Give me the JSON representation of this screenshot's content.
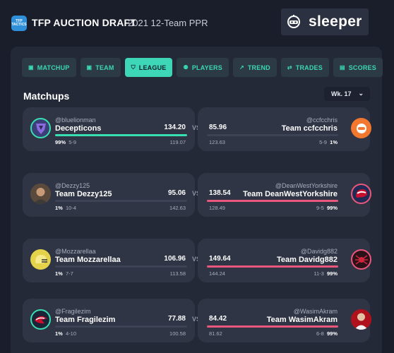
{
  "header": {
    "logo_text": "TFP TACTICS",
    "title": "TFP AUCTION DRAFT",
    "subtitle": "2021 12-Team PPR",
    "brand": "sleeper"
  },
  "tabs": [
    {
      "label": "MATCHUP",
      "icon": "trophy-icon"
    },
    {
      "label": "TEAM",
      "icon": "roster-icon"
    },
    {
      "label": "LEAGUE",
      "icon": "shield-icon"
    },
    {
      "label": "PLAYERS",
      "icon": "players-icon"
    },
    {
      "label": "TREND",
      "icon": "trend-icon"
    },
    {
      "label": "TRADES",
      "icon": "trades-icon"
    },
    {
      "label": "SCORES",
      "icon": "scores-icon"
    }
  ],
  "active_tab": "LEAGUE",
  "section_title": "Matchups",
  "week": "Wk. 17",
  "vs_label": "VS",
  "colors": {
    "accent": "#3dd7b8",
    "win_bar": "#38dfb0",
    "lose_bar": "#e9577c",
    "background": "#1a1e2b",
    "panel": "#242938",
    "card": "#2f3545"
  },
  "matchups": [
    {
      "left": {
        "username": "@bluelionman",
        "team": "Decepticons",
        "score": "134.20",
        "win_prob": "99%",
        "record": "5-9",
        "projected": "119.07",
        "progress": 1.0,
        "avatar_icon": "decepticon-logo-icon"
      },
      "right": {
        "username": "@ccfcchris",
        "team": "Team ccfcchris",
        "score": "85.96",
        "win_prob": "1%",
        "record": "5-9",
        "projected": "123.63",
        "progress": 0.0,
        "avatar_icon": "sleeper-avatar-icon"
      }
    },
    {
      "left": {
        "username": "@Dezzy125",
        "team": "Team Dezzy125",
        "score": "95.06",
        "win_prob": "1%",
        "record": "10-4",
        "projected": "142.63",
        "progress": 0.0,
        "avatar_icon": "person-photo-icon"
      },
      "right": {
        "username": "@DeanWestYorkshire",
        "team": "Team DeanWestYorkshire",
        "score": "138.54",
        "win_prob": "99%",
        "record": "9-5",
        "projected": "128.49",
        "progress": 1.0,
        "avatar_icon": "patriots-helmet-icon"
      }
    },
    {
      "left": {
        "username": "@Mozzarellaa",
        "team": "Team Mozzarellaa",
        "score": "106.96",
        "win_prob": "1%",
        "record": "7-7",
        "projected": "113.58",
        "progress": 0.0,
        "avatar_icon": "helmet-icon"
      },
      "right": {
        "username": "@Davidg882",
        "team": "Team Davidg882",
        "score": "149.64",
        "win_prob": "99%",
        "record": "11-3",
        "projected": "144.24",
        "progress": 1.0,
        "avatar_icon": "spider-logo-icon"
      }
    },
    {
      "left": {
        "username": "@Fragilezim",
        "team": "Team Fragilezim",
        "score": "77.88",
        "win_prob": "1%",
        "record": "4-10",
        "projected": "100.58",
        "progress": 0.0,
        "avatar_icon": "patriots-logo-icon"
      },
      "right": {
        "username": "@WasimAkram",
        "team": "Team WasimAkram",
        "score": "84.42",
        "win_prob": "99%",
        "record": "6-8",
        "projected": "81.62",
        "progress": 1.0,
        "avatar_icon": "person-photo-icon"
      }
    }
  ]
}
